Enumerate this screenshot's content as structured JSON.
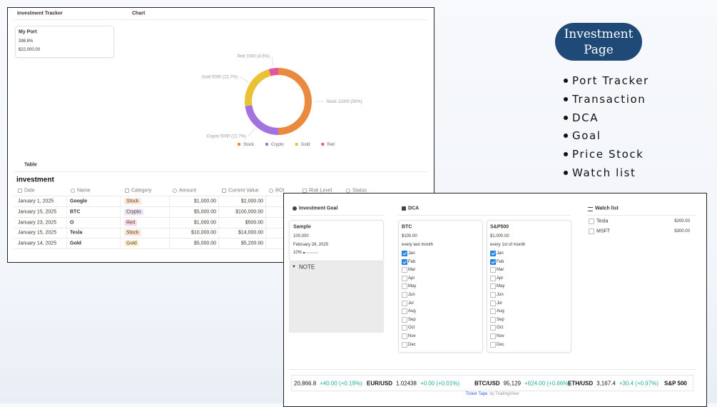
{
  "tracker": {
    "title": "Investment Tracker",
    "card": {
      "name": "My Port",
      "roi": "398.8%",
      "value": "$22,000.00"
    }
  },
  "chart_data": {
    "type": "pie",
    "title": "Chart",
    "categories": [
      "Stock",
      "Crypto",
      "Gold",
      "Reit"
    ],
    "values": [
      11000,
      5000,
      5000,
      1000
    ],
    "value_labels": [
      "11000 (50%)",
      "5000 (22.7%)",
      "5000 (22.7%)",
      "1000 (4.5%)"
    ],
    "colors": [
      "#ea8a3e",
      "#a272e0",
      "#e9c235",
      "#e2559f"
    ]
  },
  "table": {
    "title": "Table",
    "heading": "investment",
    "columns": [
      "Date",
      "Name",
      "Category",
      "Amount",
      "Current Value",
      "ROI",
      "Risk Level",
      "Status"
    ],
    "rows": [
      [
        "January 1, 2025",
        "Google",
        "Stock",
        "$1,000.00",
        "$2,000.00"
      ],
      [
        "January 15, 2025",
        "BTC",
        "Crypto",
        "$5,000.00",
        "$100,000.00"
      ],
      [
        "January 23, 2025",
        "O",
        "Reit",
        "$1,000.00",
        "$500.00"
      ],
      [
        "January 15, 2025",
        "Tesla",
        "Stock",
        "$10,000.00",
        "$14,000.00"
      ],
      [
        "January 14, 2025",
        "Gold",
        "Gold",
        "$5,000.00",
        "$5,200.00"
      ]
    ]
  },
  "goal": {
    "title": "Investment Goal",
    "card": {
      "name": "Sample",
      "target": "100,000",
      "date": "February 28, 2025",
      "progress": {
        "value": 10,
        "label": "10%"
      }
    },
    "note": "NOTE"
  },
  "dca": {
    "title": "DCA",
    "months": [
      "Jan",
      "Feb",
      "Mar",
      "Apr",
      "May",
      "Jun",
      "Jul",
      "Aug",
      "Sep",
      "Oct",
      "Nov",
      "Dec"
    ],
    "plans": [
      {
        "name": "BTC",
        "amount": "$100.00",
        "schedule": "every last month",
        "checked": [
          true,
          true,
          false,
          false,
          false,
          false,
          false,
          false,
          false,
          false,
          false,
          false
        ]
      },
      {
        "name": "S&P500",
        "amount": "$1,000.00",
        "schedule": "every 1st of month",
        "checked": [
          true,
          true,
          false,
          false,
          false,
          false,
          false,
          false,
          false,
          false,
          false,
          false
        ]
      }
    ]
  },
  "watchlist": {
    "title": "Watch list",
    "items": [
      {
        "name": "Tesla",
        "price": "$200.00"
      },
      {
        "name": "MSFT",
        "price": "$300.00"
      }
    ]
  },
  "ticker": {
    "items": [
      {
        "price": "20,866.8",
        "change": "+40.00 (+0.19%)"
      },
      {
        "symbol": "EUR/USD",
        "price": "1.02438",
        "change": "+0.00 (+0.01%)"
      },
      {
        "symbol": "BTC/USD",
        "price": "95,129",
        "change": "+624.00 (+0.66%)"
      },
      {
        "symbol": "ETH/USD",
        "price": "3,167.4",
        "change": "+30.4 (+0.97%)"
      },
      {
        "symbol": "S&P 500"
      }
    ],
    "footer_link": "Ticker Tape",
    "footer_by": "by TradingView"
  },
  "promo": {
    "title_lines": [
      "Investment",
      "Page"
    ],
    "items": [
      "Port Tracker",
      "Transaction",
      "DCA",
      "Goal",
      "Price Stock",
      "Watch list"
    ]
  }
}
